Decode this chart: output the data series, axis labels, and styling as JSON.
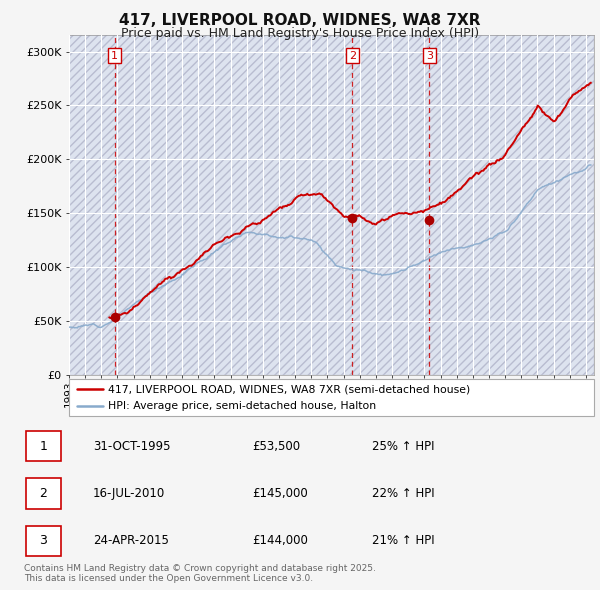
{
  "title": "417, LIVERPOOL ROAD, WIDNES, WA8 7XR",
  "subtitle": "Price paid vs. HM Land Registry's House Price Index (HPI)",
  "ylabel_ticks": [
    "£0",
    "£50K",
    "£100K",
    "£150K",
    "£200K",
    "£250K",
    "£300K"
  ],
  "ytick_values": [
    0,
    50000,
    100000,
    150000,
    200000,
    250000,
    300000
  ],
  "ylim": [
    0,
    315000
  ],
  "xlim_start": 1993.0,
  "xlim_end": 2025.5,
  "xticks": [
    1993,
    1994,
    1995,
    1996,
    1997,
    1998,
    1999,
    2000,
    2001,
    2002,
    2003,
    2004,
    2005,
    2006,
    2007,
    2008,
    2009,
    2010,
    2011,
    2012,
    2013,
    2014,
    2015,
    2016,
    2017,
    2018,
    2019,
    2020,
    2021,
    2022,
    2023,
    2024,
    2025
  ],
  "background_color": "#f5f5f5",
  "plot_bg_color": "#dde3ef",
  "grid_color": "#ffffff",
  "hatch_pattern": "////",
  "transaction_dates": [
    1995.833,
    2010.54,
    2015.31
  ],
  "transaction_prices": [
    53500,
    145000,
    144000
  ],
  "transaction_labels": [
    "1",
    "2",
    "3"
  ],
  "vline_color": "#cc0000",
  "vline_style": "--",
  "marker_color": "#aa0000",
  "red_line_color": "#cc0000",
  "blue_line_color": "#88aacc",
  "legend_red_label": "417, LIVERPOOL ROAD, WIDNES, WA8 7XR (semi-detached house)",
  "legend_blue_label": "HPI: Average price, semi-detached house, Halton",
  "sale1_label": "1",
  "sale1_date": "31-OCT-1995",
  "sale1_price": "£53,500",
  "sale1_hpi": "25% ↑ HPI",
  "sale2_label": "2",
  "sale2_date": "16-JUL-2010",
  "sale2_price": "£145,000",
  "sale2_hpi": "22% ↑ HPI",
  "sale3_label": "3",
  "sale3_date": "24-APR-2015",
  "sale3_price": "£144,000",
  "sale3_hpi": "21% ↑ HPI",
  "footer": "Contains HM Land Registry data © Crown copyright and database right 2025.\nThis data is licensed under the Open Government Licence v3.0."
}
